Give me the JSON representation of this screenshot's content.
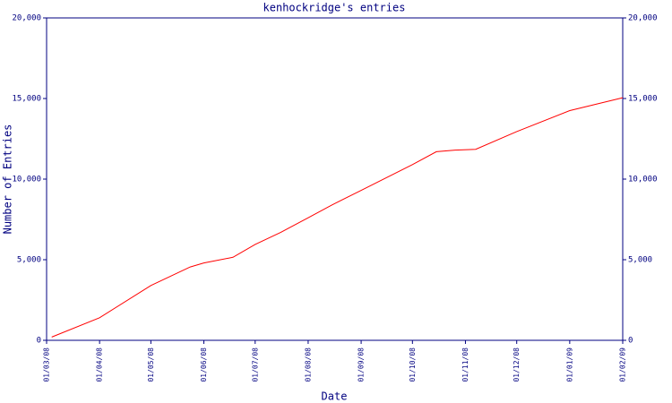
{
  "chart_data": {
    "type": "line",
    "title": "kenhockridge's entries",
    "xlabel": "Date",
    "ylabel": "Number of Entries",
    "x": [
      "04/03/08",
      "01/04/08",
      "01/05/08",
      "24/05/08",
      "01/06/08",
      "18/06/08",
      "01/07/08",
      "16/07/08",
      "01/08/08",
      "15/08/08",
      "01/09/08",
      "01/10/08",
      "15/10/08",
      "26/10/08",
      "07/11/08",
      "01/12/08",
      "01/01/09",
      "01/02/09"
    ],
    "series": [
      {
        "name": "Entries",
        "color": "#ff0000",
        "values": [
          200,
          1400,
          3400,
          4550,
          4800,
          5150,
          5950,
          6700,
          7600,
          8400,
          9300,
          10900,
          11700,
          11800,
          11850,
          12950,
          14250,
          15050
        ]
      }
    ],
    "xlim": [
      "01/03/08",
      "01/02/09"
    ],
    "xticks": [
      "01/03/08",
      "01/04/08",
      "01/05/08",
      "01/06/08",
      "01/07/08",
      "01/08/08",
      "01/09/08",
      "01/10/08",
      "01/11/08",
      "01/12/08",
      "01/01/09",
      "01/02/09"
    ],
    "ylim": [
      0,
      20000
    ],
    "yticks": [
      0,
      {
        "value": 5000,
        "label": "5,000"
      },
      {
        "value": 10000,
        "label": "10,000"
      },
      {
        "value": 15000,
        "label": "15,000"
      },
      {
        "value": 20000,
        "label": "20,000"
      }
    ]
  }
}
